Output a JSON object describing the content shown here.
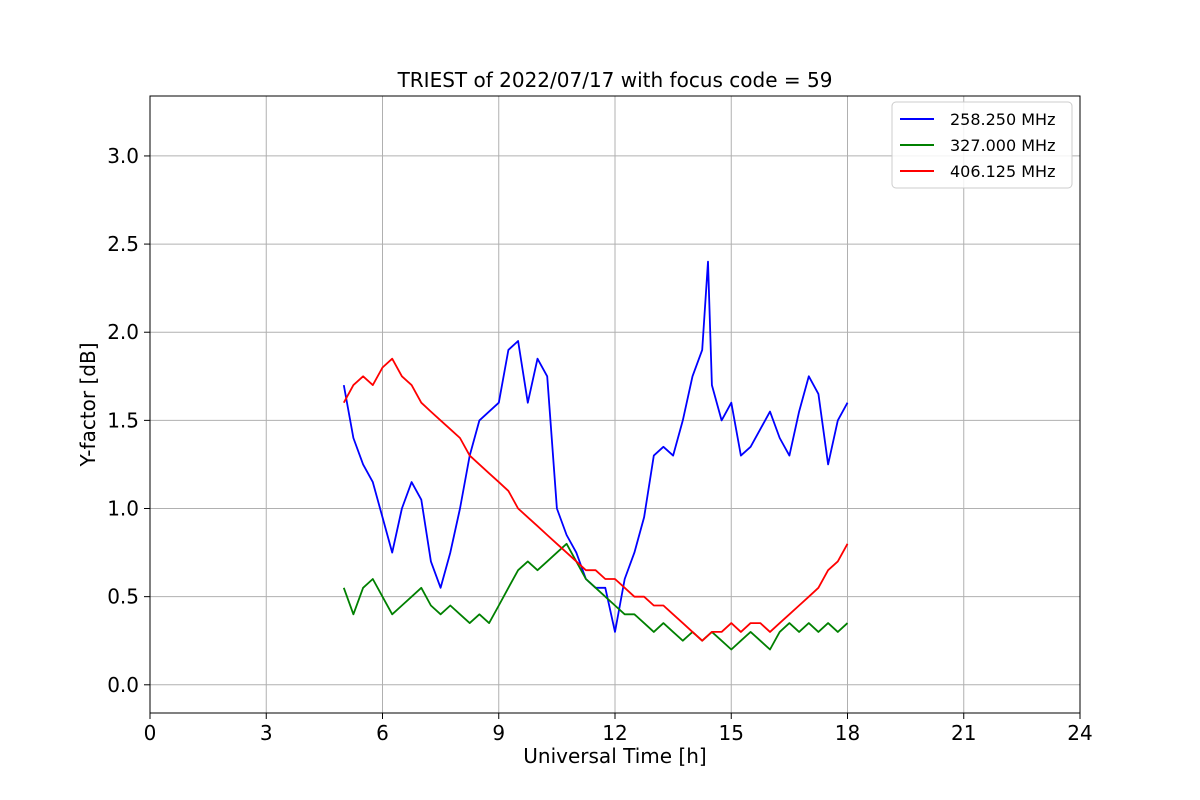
{
  "chart_data": {
    "type": "line",
    "title": "TRIEST of 2022/07/17 with focus code = 59",
    "xlabel": "Universal Time [h]",
    "ylabel": "Y-factor [dB]",
    "xlim": [
      0,
      24
    ],
    "ylim": [
      -0.16,
      3.34
    ],
    "xticks": [
      0,
      3,
      6,
      9,
      12,
      15,
      18,
      21,
      24
    ],
    "yticks": [
      0.0,
      0.5,
      1.0,
      1.5,
      2.0,
      2.5,
      3.0
    ],
    "xtick_labels": [
      "0",
      "3",
      "6",
      "9",
      "12",
      "15",
      "18",
      "21",
      "24"
    ],
    "ytick_labels": [
      "0.0",
      "0.5",
      "1.0",
      "1.5",
      "2.0",
      "2.5",
      "3.0"
    ],
    "grid": true,
    "legend_position": "top-right",
    "series": [
      {
        "name": "258.250 MHz",
        "color": "#0000ff",
        "x": [
          5.0,
          5.25,
          5.5,
          5.75,
          6.0,
          6.25,
          6.5,
          6.75,
          7.0,
          7.25,
          7.5,
          7.75,
          8.0,
          8.25,
          8.5,
          8.75,
          9.0,
          9.25,
          9.5,
          9.75,
          10.0,
          10.25,
          10.5,
          10.75,
          11.0,
          11.25,
          11.5,
          11.75,
          12.0,
          12.25,
          12.5,
          12.75,
          13.0,
          13.25,
          13.5,
          13.75,
          14.0,
          14.25,
          14.4,
          14.5,
          14.75,
          15.0,
          15.25,
          15.5,
          15.75,
          16.0,
          16.25,
          16.5,
          16.75,
          17.0,
          17.25,
          17.5,
          17.75,
          18.0
        ],
        "y": [
          1.7,
          1.4,
          1.25,
          1.15,
          0.95,
          0.75,
          1.0,
          1.15,
          1.05,
          0.7,
          0.55,
          0.75,
          1.0,
          1.3,
          1.5,
          1.55,
          1.6,
          1.9,
          1.95,
          1.6,
          1.85,
          1.75,
          1.0,
          0.85,
          0.75,
          0.6,
          0.55,
          0.55,
          0.3,
          0.6,
          0.75,
          0.95,
          1.3,
          1.35,
          1.3,
          1.5,
          1.75,
          1.9,
          2.4,
          1.7,
          1.5,
          1.6,
          1.3,
          1.35,
          1.45,
          1.55,
          1.4,
          1.3,
          1.55,
          1.75,
          1.65,
          1.25,
          1.5,
          1.6
        ]
      },
      {
        "name": "327.000 MHz",
        "color": "#008000",
        "x": [
          5.0,
          5.25,
          5.5,
          5.75,
          6.0,
          6.25,
          6.5,
          6.75,
          7.0,
          7.25,
          7.5,
          7.75,
          8.0,
          8.25,
          8.5,
          8.75,
          9.0,
          9.25,
          9.5,
          9.75,
          10.0,
          10.25,
          10.5,
          10.75,
          11.0,
          11.25,
          11.5,
          11.75,
          12.0,
          12.25,
          12.5,
          12.75,
          13.0,
          13.25,
          13.5,
          13.75,
          14.0,
          14.25,
          14.5,
          14.75,
          15.0,
          15.25,
          15.5,
          15.75,
          16.0,
          16.25,
          16.5,
          16.75,
          17.0,
          17.25,
          17.5,
          17.75,
          18.0
        ],
        "y": [
          0.55,
          0.4,
          0.55,
          0.6,
          0.5,
          0.4,
          0.45,
          0.5,
          0.55,
          0.45,
          0.4,
          0.45,
          0.4,
          0.35,
          0.4,
          0.35,
          0.45,
          0.55,
          0.65,
          0.7,
          0.65,
          0.7,
          0.75,
          0.8,
          0.7,
          0.6,
          0.55,
          0.5,
          0.45,
          0.4,
          0.4,
          0.35,
          0.3,
          0.35,
          0.3,
          0.25,
          0.3,
          0.25,
          0.3,
          0.25,
          0.2,
          0.25,
          0.3,
          0.25,
          0.2,
          0.3,
          0.35,
          0.3,
          0.35,
          0.3,
          0.35,
          0.3,
          0.35
        ]
      },
      {
        "name": "406.125 MHz",
        "color": "#ff0000",
        "x": [
          5.0,
          5.25,
          5.5,
          5.75,
          6.0,
          6.25,
          6.5,
          6.75,
          7.0,
          7.25,
          7.5,
          7.75,
          8.0,
          8.25,
          8.5,
          8.75,
          9.0,
          9.25,
          9.5,
          9.75,
          10.0,
          10.25,
          10.5,
          10.75,
          11.0,
          11.25,
          11.5,
          11.75,
          12.0,
          12.25,
          12.5,
          12.75,
          13.0,
          13.25,
          13.5,
          13.75,
          14.0,
          14.25,
          14.5,
          14.75,
          15.0,
          15.25,
          15.5,
          15.75,
          16.0,
          16.25,
          16.5,
          16.75,
          17.0,
          17.25,
          17.5,
          17.75,
          18.0
        ],
        "y": [
          1.6,
          1.7,
          1.75,
          1.7,
          1.8,
          1.85,
          1.75,
          1.7,
          1.6,
          1.55,
          1.5,
          1.45,
          1.4,
          1.3,
          1.25,
          1.2,
          1.15,
          1.1,
          1.0,
          0.95,
          0.9,
          0.85,
          0.8,
          0.75,
          0.7,
          0.65,
          0.65,
          0.6,
          0.6,
          0.55,
          0.5,
          0.5,
          0.45,
          0.45,
          0.4,
          0.35,
          0.3,
          0.25,
          0.3,
          0.3,
          0.35,
          0.3,
          0.35,
          0.35,
          0.3,
          0.35,
          0.4,
          0.45,
          0.5,
          0.55,
          0.65,
          0.7,
          0.8
        ]
      }
    ]
  }
}
